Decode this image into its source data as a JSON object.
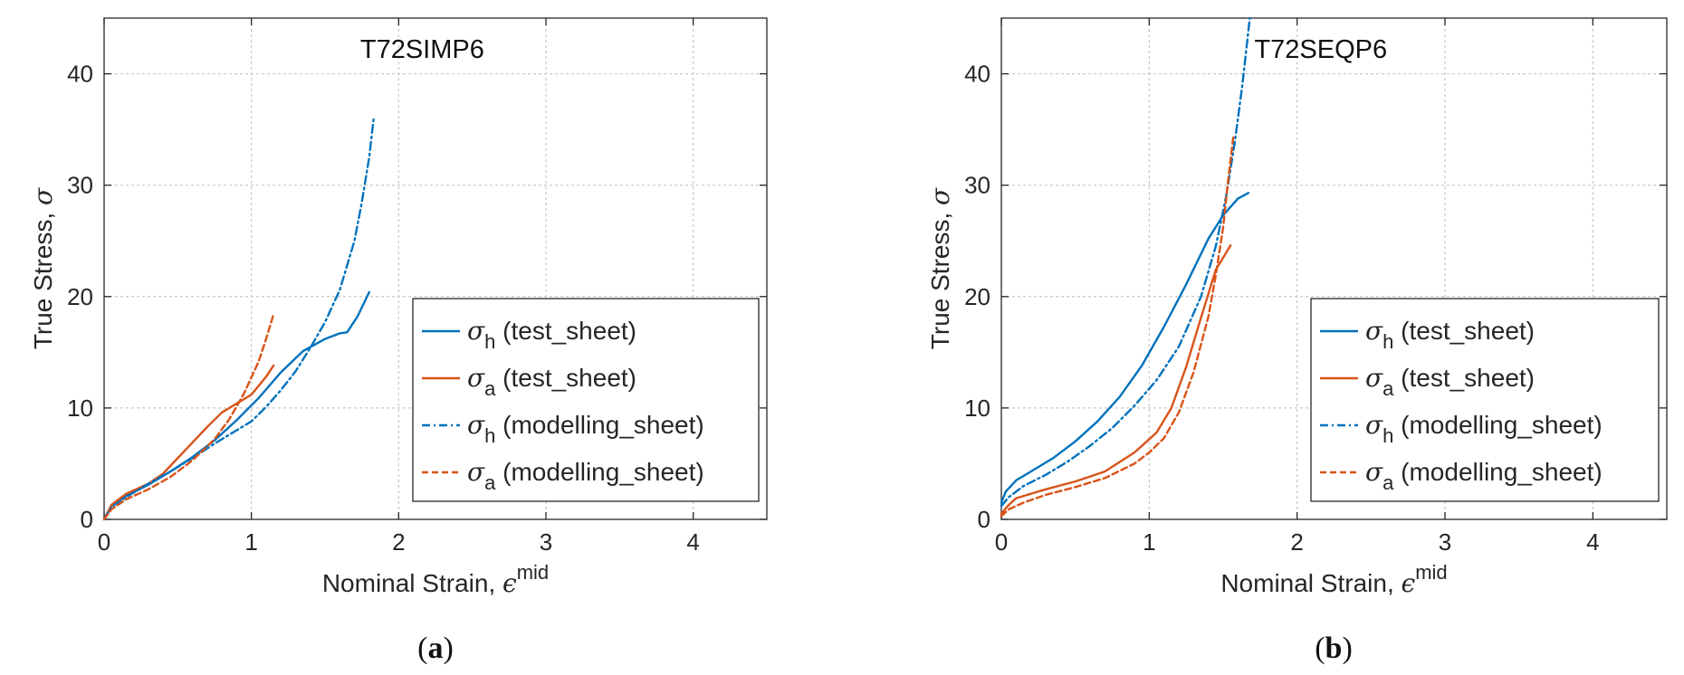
{
  "chart_data": [
    {
      "type": "line",
      "title": "T72SIMP6",
      "panel_label": "(a)",
      "xlabel": "Nominal Strain, ",
      "xlabel_symbol": "ϵ",
      "xlabel_sup": "mid",
      "ylabel": "True Stress, ",
      "ylabel_symbol": "σ",
      "xlim": [
        0,
        4.5
      ],
      "ylim": [
        0,
        45
      ],
      "xticks": [
        0,
        1,
        2,
        3,
        4
      ],
      "yticks": [
        0,
        10,
        20,
        30,
        40
      ],
      "grid": true,
      "legend_position": "bottom-right",
      "series": [
        {
          "name": "σh (test_sheet)",
          "symbol": "σ",
          "sub": "h",
          "label": " (test_sheet)",
          "color": "#0072BD",
          "style": "solid",
          "x": [
            0,
            0.05,
            0.15,
            0.3,
            0.45,
            0.6,
            0.75,
            0.9,
            1.05,
            1.2,
            1.35,
            1.5,
            1.6,
            1.65,
            1.72,
            1.8
          ],
          "y": [
            0,
            1.2,
            2.1,
            3.1,
            4.3,
            5.6,
            7.1,
            8.9,
            10.9,
            13.2,
            15.1,
            16.2,
            16.7,
            16.8,
            18.2,
            20.4
          ]
        },
        {
          "name": "σa (test_sheet)",
          "symbol": "σ",
          "sub": "a",
          "label": " (test_sheet)",
          "color": "#D95319",
          "style": "solid",
          "x": [
            0,
            0.05,
            0.15,
            0.3,
            0.4,
            0.5,
            0.6,
            0.7,
            0.8,
            0.9,
            1.0,
            1.1,
            1.15
          ],
          "y": [
            0,
            1.3,
            2.3,
            3.2,
            4.1,
            5.5,
            6.9,
            8.3,
            9.6,
            10.4,
            11.2,
            12.8,
            13.8
          ]
        },
        {
          "name": "σh (modelling_sheet)",
          "symbol": "σ",
          "sub": "h",
          "label": " (modelling_sheet)",
          "color": "#0072BD",
          "style": "dashdot",
          "x": [
            0,
            0.05,
            0.15,
            0.3,
            0.45,
            0.6,
            0.75,
            0.9,
            1.0,
            1.1,
            1.2,
            1.3,
            1.4,
            1.5,
            1.6,
            1.7,
            1.75,
            1.8,
            1.83
          ],
          "y": [
            0,
            1.1,
            2.0,
            3.2,
            4.3,
            5.5,
            6.8,
            8.0,
            8.8,
            10.1,
            11.6,
            13.3,
            15.4,
            17.7,
            20.6,
            25.0,
            28.5,
            32.5,
            36.0
          ]
        },
        {
          "name": "σa (modelling_sheet)",
          "symbol": "σ",
          "sub": "a",
          "label": " (modelling_sheet)",
          "color": "#D95319",
          "style": "dashed",
          "x": [
            0,
            0.05,
            0.15,
            0.3,
            0.45,
            0.6,
            0.75,
            0.85,
            0.95,
            1.05,
            1.1,
            1.15
          ],
          "y": [
            0,
            0.9,
            1.8,
            2.7,
            3.8,
            5.3,
            7.2,
            9.0,
            11.3,
            14.2,
            16.2,
            18.4
          ]
        }
      ]
    },
    {
      "type": "line",
      "title": "T72SEQP6",
      "panel_label": "(b)",
      "xlabel": "Nominal Strain, ",
      "xlabel_symbol": "ϵ",
      "xlabel_sup": "mid",
      "ylabel": "True Stress, ",
      "ylabel_symbol": "σ",
      "xlim": [
        0,
        4.5
      ],
      "ylim": [
        0,
        45
      ],
      "xticks": [
        0,
        1,
        2,
        3,
        4
      ],
      "yticks": [
        0,
        10,
        20,
        30,
        40
      ],
      "grid": true,
      "legend_position": "bottom-right",
      "series": [
        {
          "name": "σh (test_sheet)",
          "symbol": "σ",
          "sub": "h",
          "label": " (test_sheet)",
          "color": "#0072BD",
          "style": "solid",
          "x": [
            0,
            0.03,
            0.1,
            0.2,
            0.35,
            0.5,
            0.65,
            0.8,
            0.95,
            1.1,
            1.25,
            1.4,
            1.5,
            1.6,
            1.67
          ],
          "y": [
            1.5,
            2.5,
            3.5,
            4.3,
            5.5,
            7.0,
            8.8,
            11.0,
            13.8,
            17.3,
            21.1,
            25.2,
            27.3,
            28.8,
            29.3
          ]
        },
        {
          "name": "σa (test_sheet)",
          "symbol": "σ",
          "sub": "a",
          "label": " (test_sheet)",
          "color": "#D95319",
          "style": "solid",
          "x": [
            0,
            0.05,
            0.1,
            0.3,
            0.5,
            0.7,
            0.9,
            1.05,
            1.15,
            1.25,
            1.35,
            1.45,
            1.55
          ],
          "y": [
            0.5,
            1.3,
            1.9,
            2.7,
            3.4,
            4.3,
            6.0,
            7.8,
            10.0,
            13.7,
            18.1,
            22.4,
            24.6
          ]
        },
        {
          "name": "σh (modelling_sheet)",
          "symbol": "σ",
          "sub": "h",
          "label": " (modelling_sheet)",
          "color": "#0072BD",
          "style": "dashdot",
          "x": [
            0,
            0.05,
            0.15,
            0.3,
            0.45,
            0.6,
            0.75,
            0.9,
            1.05,
            1.2,
            1.35,
            1.45,
            1.52,
            1.58,
            1.63,
            1.68
          ],
          "y": [
            1.2,
            2.0,
            3.0,
            4.0,
            5.2,
            6.6,
            8.2,
            10.2,
            12.5,
            15.5,
            20.0,
            24.5,
            29.0,
            34.0,
            39.0,
            45.0
          ]
        },
        {
          "name": "σa (modelling_sheet)",
          "symbol": "σ",
          "sub": "a",
          "label": " (modelling_sheet)",
          "color": "#D95319",
          "style": "dashed",
          "x": [
            0,
            0.05,
            0.15,
            0.3,
            0.5,
            0.7,
            0.9,
            1.0,
            1.1,
            1.2,
            1.3,
            1.4,
            1.45,
            1.5,
            1.53,
            1.57
          ],
          "y": [
            0.3,
            0.9,
            1.5,
            2.2,
            2.9,
            3.7,
            5.0,
            6.0,
            7.3,
            9.6,
            13.2,
            18.2,
            21.9,
            26.2,
            30.0,
            34.5
          ]
        }
      ]
    }
  ]
}
